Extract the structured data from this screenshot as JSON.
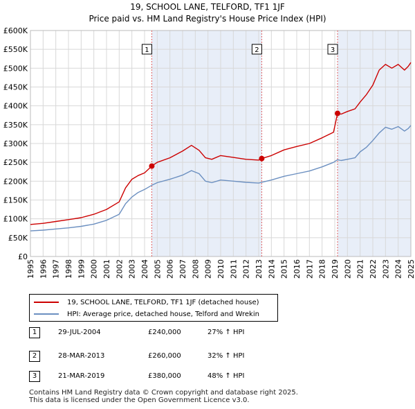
{
  "title_line1": "19, SCHOOL LANE, TELFORD, TF1 1JF",
  "title_line2": "Price paid vs. HM Land Registry's House Price Index (HPI)",
  "colors": {
    "property_line": "#cc0000",
    "hpi_line": "#6b8fc0",
    "shade": "#e8eef8",
    "marker_line": "#e06060",
    "grid": "#d8d8d8"
  },
  "chart_data": {
    "type": "line",
    "title": "Price paid vs. HM Land Registry's House Price Index (HPI)",
    "xlabel": "",
    "ylabel": "",
    "xlim": [
      1995,
      2025
    ],
    "ylim": [
      0,
      600000
    ],
    "y_ticks": [
      0,
      50000,
      100000,
      150000,
      200000,
      250000,
      300000,
      350000,
      400000,
      450000,
      500000,
      550000,
      600000
    ],
    "y_tick_labels": [
      "£0",
      "£50K",
      "£100K",
      "£150K",
      "£200K",
      "£250K",
      "£300K",
      "£350K",
      "£400K",
      "£450K",
      "£500K",
      "£550K",
      "£600K"
    ],
    "x_ticks": [
      1995,
      1996,
      1997,
      1998,
      1999,
      2000,
      2001,
      2002,
      2003,
      2004,
      2005,
      2006,
      2007,
      2008,
      2009,
      2010,
      2011,
      2012,
      2013,
      2014,
      2015,
      2016,
      2017,
      2018,
      2019,
      2020,
      2021,
      2022,
      2023,
      2024,
      2025
    ],
    "x_tick_labels": [
      "1995",
      "1996",
      "1997",
      "1998",
      "1999",
      "2000",
      "2001",
      "2002",
      "2003",
      "2004",
      "2005",
      "2006",
      "2007",
      "2008",
      "2009",
      "2010",
      "2011",
      "2012",
      "2013",
      "2014",
      "2015",
      "2016",
      "2017",
      "2018",
      "2019",
      "2020",
      "2021",
      "2022",
      "2023",
      "2024",
      "2025"
    ],
    "grid": true,
    "series": [
      {
        "name": "19, SCHOOL LANE, TELFORD, TF1 1JF (detached house)",
        "color": "#cc0000",
        "x": [
          1995,
          1996,
          1997,
          1998,
          1999,
          2000,
          2001,
          2002,
          2002.5,
          2003,
          2003.5,
          2004,
          2004.57,
          2005,
          2006,
          2007,
          2007.7,
          2008.3,
          2008.8,
          2009.3,
          2010,
          2011,
          2012,
          2013,
          2013.24,
          2014,
          2015,
          2016,
          2017,
          2018,
          2018.9,
          2019.22,
          2019.5,
          2020,
          2020.6,
          2021,
          2021.5,
          2022,
          2022.5,
          2023,
          2023.5,
          2024,
          2024.5,
          2024.8,
          2025
        ],
        "y": [
          85000,
          88000,
          93000,
          98000,
          103000,
          112000,
          125000,
          145000,
          182000,
          205000,
          215000,
          222000,
          240000,
          250000,
          262000,
          280000,
          295000,
          282000,
          262000,
          258000,
          268000,
          263000,
          258000,
          256000,
          260000,
          268000,
          283000,
          292000,
          300000,
          315000,
          330000,
          380000,
          378000,
          385000,
          392000,
          410000,
          430000,
          455000,
          495000,
          510000,
          500000,
          510000,
          495000,
          505000,
          515000
        ]
      },
      {
        "name": "HPI: Average price, detached house, Telford and Wrekin",
        "color": "#6b8fc0",
        "x": [
          1995,
          1996,
          1997,
          1998,
          1999,
          2000,
          2001,
          2002,
          2002.5,
          2003,
          2003.5,
          2004,
          2004.57,
          2005,
          2006,
          2007,
          2007.7,
          2008.3,
          2008.8,
          2009.3,
          2010,
          2011,
          2012,
          2013,
          2013.24,
          2014,
          2015,
          2016,
          2017,
          2018,
          2018.9,
          2019.22,
          2019.5,
          2020,
          2020.6,
          2021,
          2021.5,
          2022,
          2022.5,
          2023,
          2023.5,
          2024,
          2024.5,
          2024.8,
          2025
        ],
        "y": [
          68000,
          70000,
          73000,
          76000,
          80000,
          86000,
          96000,
          112000,
          140000,
          158000,
          170000,
          178000,
          189000,
          196000,
          205000,
          216000,
          228000,
          220000,
          200000,
          196000,
          203000,
          200000,
          197000,
          195000,
          197000,
          203000,
          213000,
          220000,
          227000,
          238000,
          250000,
          257000,
          255000,
          258000,
          262000,
          278000,
          290000,
          308000,
          328000,
          343000,
          338000,
          345000,
          333000,
          340000,
          348000
        ]
      }
    ],
    "sale_markers": [
      {
        "label": "1",
        "x": 2004.57,
        "y": 240000
      },
      {
        "label": "2",
        "x": 2013.24,
        "y": 260000
      },
      {
        "label": "3",
        "x": 2019.22,
        "y": 380000
      }
    ],
    "shaded_ranges": [
      [
        2004.57,
        2013.24
      ],
      [
        2019.22,
        2025
      ]
    ]
  },
  "legend": {
    "property": "19, SCHOOL LANE, TELFORD, TF1 1JF (detached house)",
    "hpi": "HPI: Average price, detached house, Telford and Wrekin"
  },
  "sales": [
    {
      "num": "1",
      "date": "29-JUL-2004",
      "price": "£240,000",
      "hpi": "27% ↑ HPI"
    },
    {
      "num": "2",
      "date": "28-MAR-2013",
      "price": "£260,000",
      "hpi": "32% ↑ HPI"
    },
    {
      "num": "3",
      "date": "21-MAR-2019",
      "price": "£380,000",
      "hpi": "48% ↑ HPI"
    }
  ],
  "footer": {
    "line1": "Contains HM Land Registry data © Crown copyright and database right 2025.",
    "line2": "This data is licensed under the Open Government Licence v3.0."
  }
}
